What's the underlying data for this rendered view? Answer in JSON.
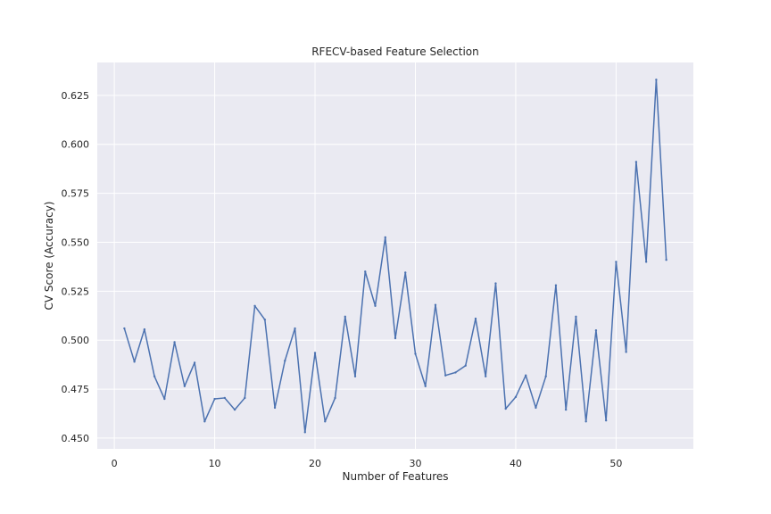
{
  "chart_data": {
    "type": "line",
    "title": "RFECV-based Feature Selection",
    "xlabel": "Number of Features",
    "ylabel": "CV Score (Accuracy)",
    "xlim": [
      -1.7,
      57.7
    ],
    "ylim": [
      0.4445,
      0.6418
    ],
    "xticks": [
      0,
      10,
      20,
      30,
      40,
      50
    ],
    "yticks": [
      0.45,
      0.475,
      0.5,
      0.525,
      0.55,
      0.575,
      0.6,
      0.625
    ],
    "ytick_labels": [
      "0.450",
      "0.475",
      "0.500",
      "0.525",
      "0.550",
      "0.575",
      "0.600",
      "0.625"
    ],
    "grid": true,
    "background": "#EAEAF2",
    "grid_color": "#FFFFFF",
    "line_color": "#4C72B0",
    "x": [
      1,
      2,
      3,
      4,
      5,
      6,
      7,
      8,
      9,
      10,
      11,
      12,
      13,
      14,
      15,
      16,
      17,
      18,
      19,
      20,
      21,
      22,
      23,
      24,
      25,
      26,
      27,
      28,
      29,
      30,
      31,
      32,
      33,
      34,
      35,
      36,
      37,
      38,
      39,
      40,
      41,
      42,
      43,
      44,
      45,
      46,
      47,
      48,
      49,
      50,
      51,
      52,
      53,
      54,
      55
    ],
    "y": [
      0.506,
      0.489,
      0.5055,
      0.4815,
      0.47,
      0.499,
      0.4765,
      0.4885,
      0.4585,
      0.47,
      0.4705,
      0.4645,
      0.4705,
      0.5175,
      0.5105,
      0.4655,
      0.4895,
      0.506,
      0.453,
      0.4935,
      0.4585,
      0.4705,
      0.512,
      0.4815,
      0.535,
      0.5175,
      0.5525,
      0.501,
      0.5345,
      0.493,
      0.4765,
      0.518,
      0.482,
      0.4835,
      0.487,
      0.511,
      0.4815,
      0.529,
      0.465,
      0.471,
      0.482,
      0.4655,
      0.4815,
      0.528,
      0.4645,
      0.512,
      0.4585,
      0.505,
      0.459,
      0.54,
      0.494,
      0.591,
      0.54,
      0.633,
      0.541
    ]
  }
}
